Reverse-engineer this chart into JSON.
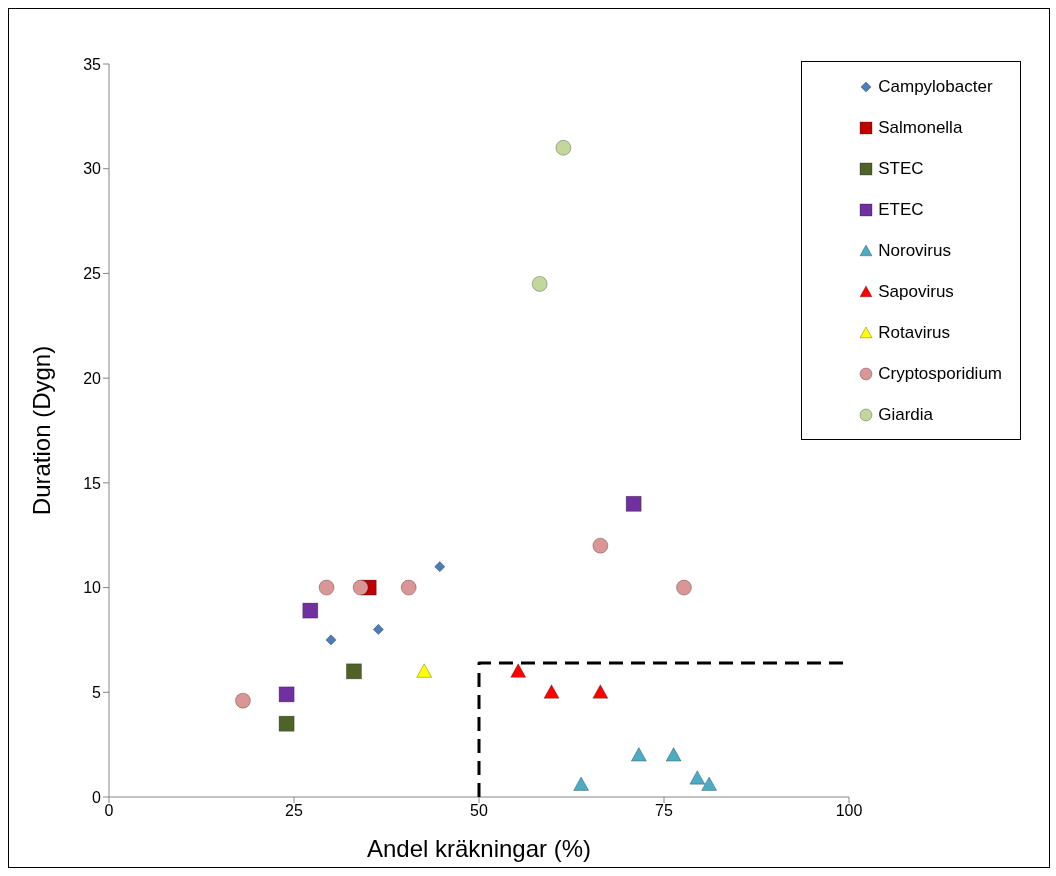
{
  "chart_data": {
    "type": "scatter",
    "xlabel": "Andel kräkningar (%)",
    "ylabel": "Duration (Dygn)",
    "xlim": [
      0,
      100
    ],
    "xticks": [
      0,
      25,
      50,
      75,
      100
    ],
    "ylim": [
      0,
      35
    ],
    "yticks": [
      0,
      5,
      10,
      15,
      20,
      25,
      30,
      35
    ],
    "legend": "top right",
    "series": [
      {
        "name": "Campylobacter",
        "color": "#4a7ebb",
        "marker": "diamond",
        "x": [
          30,
          36.4,
          44.7
        ],
        "values": [
          7.5,
          8,
          11
        ]
      },
      {
        "name": "Salmonella",
        "color": "#c00000",
        "marker": "square",
        "x": [
          35.1
        ],
        "values": [
          10
        ]
      },
      {
        "name": "STEC",
        "color": "#4f6228",
        "marker": "square",
        "x": [
          24,
          33.1
        ],
        "values": [
          3.5,
          6
        ]
      },
      {
        "name": "ETEC",
        "color": "#7030a0",
        "marker": "square",
        "x": [
          24,
          27.2,
          70.9
        ],
        "values": [
          4.9,
          8.9,
          14
        ]
      },
      {
        "name": "Norovirus",
        "color": "#4bacc6",
        "marker": "triangle",
        "x": [
          63.8,
          71.6,
          76.3,
          79.5,
          81.1
        ],
        "values": [
          0.6,
          2,
          2,
          0.9,
          0.6
        ]
      },
      {
        "name": "Sapovirus",
        "color": "#ff0000",
        "marker": "triangle",
        "x": [
          55.3,
          59.8,
          66.4
        ],
        "values": [
          6,
          5,
          5
        ]
      },
      {
        "name": "Rotavirus",
        "color": "#ffff00",
        "marker": "triangle",
        "x": [
          42.6
        ],
        "values": [
          6
        ]
      },
      {
        "name": "Cryptosporidium",
        "color": "#d99694",
        "marker": "circle",
        "x": [
          18.1,
          29.4,
          34,
          40.5,
          66.4,
          77.7
        ],
        "values": [
          4.6,
          10,
          10,
          10,
          12,
          10
        ]
      },
      {
        "name": "Giardia",
        "color": "#c3d69b",
        "marker": "circle",
        "x": [
          58.2,
          61.4
        ],
        "values": [
          24.5,
          31
        ]
      },
      {
        "type": "line",
        "color": "#000000",
        "line_style": "dashed",
        "marker": "none",
        "x": [
          50,
          50,
          100
        ],
        "values": [
          0,
          6.4,
          6.4
        ]
      }
    ]
  }
}
